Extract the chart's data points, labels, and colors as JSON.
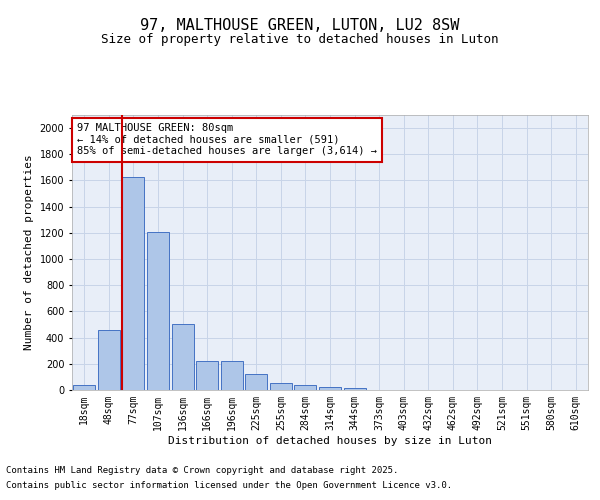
{
  "title_line1": "97, MALTHOUSE GREEN, LUTON, LU2 8SW",
  "title_line2": "Size of property relative to detached houses in Luton",
  "xlabel": "Distribution of detached houses by size in Luton",
  "ylabel": "Number of detached properties",
  "categories": [
    "18sqm",
    "48sqm",
    "77sqm",
    "107sqm",
    "136sqm",
    "166sqm",
    "196sqm",
    "225sqm",
    "255sqm",
    "284sqm",
    "314sqm",
    "344sqm",
    "373sqm",
    "403sqm",
    "432sqm",
    "462sqm",
    "492sqm",
    "521sqm",
    "551sqm",
    "580sqm",
    "610sqm"
  ],
  "values": [
    35,
    455,
    1630,
    1210,
    505,
    220,
    220,
    125,
    50,
    40,
    25,
    15,
    0,
    0,
    0,
    0,
    0,
    0,
    0,
    0,
    0
  ],
  "bar_color": "#aec6e8",
  "bar_edge_color": "#4472c4",
  "vline_color": "#cc0000",
  "vline_index": 2,
  "annotation_text": "97 MALTHOUSE GREEN: 80sqm\n← 14% of detached houses are smaller (591)\n85% of semi-detached houses are larger (3,614) →",
  "annotation_box_color": "#ffffff",
  "annotation_box_edge_color": "#cc0000",
  "ylim": [
    0,
    2100
  ],
  "yticks": [
    0,
    200,
    400,
    600,
    800,
    1000,
    1200,
    1400,
    1600,
    1800,
    2000
  ],
  "grid_color": "#c8d4e8",
  "background_color": "#e8eef8",
  "footer_line1": "Contains HM Land Registry data © Crown copyright and database right 2025.",
  "footer_line2": "Contains public sector information licensed under the Open Government Licence v3.0.",
  "title_fontsize": 11,
  "subtitle_fontsize": 9,
  "axis_label_fontsize": 8,
  "tick_fontsize": 7,
  "annotation_fontsize": 7.5,
  "footer_fontsize": 6.5
}
